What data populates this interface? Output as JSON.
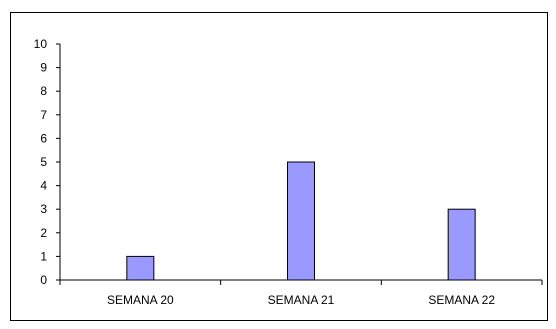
{
  "chart_data": {
    "type": "bar",
    "categories": [
      "SEMANA 20",
      "SEMANA 21",
      "SEMANA 22"
    ],
    "values": [
      1,
      5,
      3
    ],
    "ylim": [
      0,
      10
    ],
    "yticks": [
      0,
      1,
      2,
      3,
      4,
      5,
      6,
      7,
      8,
      9,
      10
    ],
    "grid": false,
    "bar_color": "#9999FF",
    "bar_stroke": "#000000",
    "title": "",
    "xlabel": "",
    "ylabel": ""
  }
}
